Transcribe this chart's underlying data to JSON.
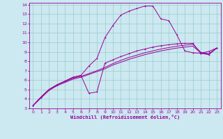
{
  "xlabel": "Windchill (Refroidissement éolien,°C)",
  "bg_color": "#cce8f0",
  "line_color": "#990099",
  "grid_color": "#99cccc",
  "xlim": [
    -0.5,
    23.5
  ],
  "ylim": [
    3,
    14.2
  ],
  "xticks": [
    0,
    1,
    2,
    3,
    4,
    5,
    6,
    7,
    8,
    9,
    10,
    11,
    12,
    13,
    14,
    15,
    16,
    17,
    18,
    19,
    20,
    21,
    22,
    23
  ],
  "yticks": [
    3,
    4,
    5,
    6,
    7,
    8,
    9,
    10,
    11,
    12,
    13,
    14
  ],
  "curve1_x": [
    0,
    1,
    2,
    3,
    4,
    5,
    6,
    7,
    8,
    9,
    10,
    11,
    12,
    13,
    14,
    15,
    16,
    17,
    18,
    19,
    20,
    21,
    22,
    23
  ],
  "curve1_y": [
    3.3,
    4.2,
    5.0,
    5.5,
    5.9,
    6.3,
    6.5,
    7.5,
    8.3,
    10.5,
    11.8,
    12.9,
    13.3,
    13.6,
    13.85,
    13.85,
    12.5,
    12.3,
    10.8,
    9.1,
    8.9,
    8.85,
    9.05,
    9.4
  ],
  "curve2_x": [
    0,
    1,
    2,
    3,
    4,
    5,
    6,
    7,
    8,
    9,
    10,
    11,
    12,
    13,
    14,
    15,
    16,
    17,
    18,
    19,
    20,
    21,
    22,
    23
  ],
  "curve2_y": [
    3.3,
    4.2,
    5.0,
    5.5,
    5.9,
    6.3,
    6.5,
    4.6,
    4.75,
    7.8,
    8.15,
    8.5,
    8.8,
    9.1,
    9.3,
    9.5,
    9.65,
    9.75,
    9.85,
    9.9,
    9.9,
    8.85,
    8.7,
    9.4
  ],
  "curve3_x": [
    0,
    1,
    2,
    3,
    4,
    5,
    6,
    7,
    8,
    9,
    10,
    11,
    12,
    13,
    14,
    15,
    16,
    17,
    18,
    19,
    20,
    21,
    22,
    23
  ],
  "curve3_y": [
    3.3,
    4.1,
    4.9,
    5.4,
    5.75,
    6.1,
    6.3,
    6.6,
    6.9,
    7.2,
    7.6,
    7.9,
    8.2,
    8.45,
    8.7,
    8.9,
    9.1,
    9.25,
    9.4,
    9.5,
    9.6,
    8.9,
    8.75,
    9.4
  ],
  "curve4_x": [
    0,
    1,
    2,
    3,
    4,
    5,
    6,
    7,
    8,
    9,
    10,
    11,
    12,
    13,
    14,
    15,
    16,
    17,
    18,
    19,
    20,
    21,
    22,
    23
  ],
  "curve4_y": [
    3.3,
    4.2,
    5.0,
    5.5,
    5.85,
    6.2,
    6.4,
    6.7,
    7.0,
    7.35,
    7.75,
    8.1,
    8.4,
    8.65,
    8.9,
    9.1,
    9.3,
    9.45,
    9.6,
    9.7,
    9.8,
    8.95,
    8.8,
    9.4
  ]
}
